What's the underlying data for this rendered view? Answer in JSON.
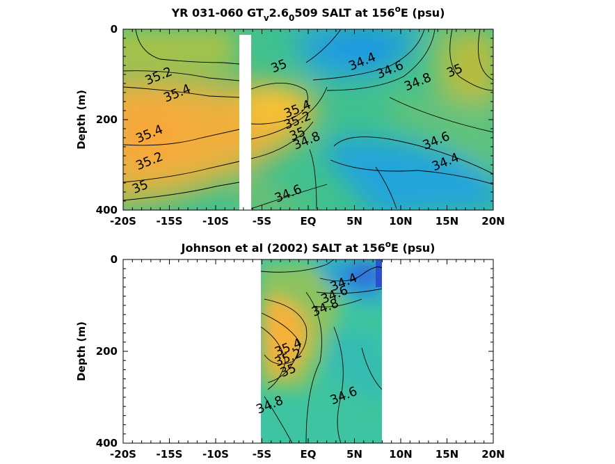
{
  "chart_data": [
    {
      "type": "heatmap",
      "title_parts": {
        "pre": "YR 031-060 GT",
        "sub1": "v",
        "mid": "2.6",
        "sub2": "0",
        "post": "509 SALT at 156",
        "sup": "o",
        "tail": "E (psu)"
      },
      "xlabel": "",
      "ylabel": "Depth (m)",
      "x_ticks": [
        "-20S",
        "-15S",
        "-10S",
        "-5S",
        "EQ",
        "5N",
        "10N",
        "15N",
        "20N"
      ],
      "y_ticks": [
        "0",
        "200",
        "400"
      ],
      "xlim": [
        -20,
        20
      ],
      "ylim": [
        0,
        400
      ],
      "y_reversed": true,
      "colormap": "parula",
      "contour_labels": [
        {
          "text": "35",
          "x": -3,
          "y": 90
        },
        {
          "text": "35.2",
          "x": -16,
          "y": 112
        },
        {
          "text": "35.4",
          "x": -14,
          "y": 150
        },
        {
          "text": "35.4",
          "x": -17,
          "y": 240
        },
        {
          "text": "35.2",
          "x": -17,
          "y": 300
        },
        {
          "text": "35",
          "x": -18,
          "y": 357
        },
        {
          "text": "35.4",
          "x": -1,
          "y": 185
        },
        {
          "text": "35.2",
          "x": -1,
          "y": 210
        },
        {
          "text": "35",
          "x": -1,
          "y": 240
        },
        {
          "text": "34.8",
          "x": 0,
          "y": 255
        },
        {
          "text": "34.6",
          "x": -2,
          "y": 372
        },
        {
          "text": "34.4",
          "x": 6,
          "y": 80
        },
        {
          "text": "34.6",
          "x": 9,
          "y": 98
        },
        {
          "text": "34.8",
          "x": 12,
          "y": 125
        },
        {
          "text": "35",
          "x": 16,
          "y": 100
        },
        {
          "text": "34.6",
          "x": 14,
          "y": 255
        },
        {
          "text": "34.4",
          "x": 15,
          "y": 302
        }
      ]
    },
    {
      "type": "heatmap",
      "title_parts": {
        "pre": "Johnson et al (2002) SALT at 156",
        "sup": "o",
        "tail": "E (psu)"
      },
      "xlabel": "",
      "ylabel": "Depth (m)",
      "x_ticks": [
        "-20S",
        "-15S",
        "-10S",
        "-5S",
        "EQ",
        "5N",
        "10N",
        "15N",
        "20N"
      ],
      "y_ticks": [
        "0",
        "200",
        "400"
      ],
      "xlim": [
        -20,
        20
      ],
      "ylim": [
        0,
        400
      ],
      "y_reversed": true,
      "data_coverage_x": [
        -5,
        8
      ],
      "colormap": "parula",
      "contour_labels": [
        {
          "text": "34.4",
          "x": 4,
          "y": 58
        },
        {
          "text": "34.6",
          "x": 3,
          "y": 85
        },
        {
          "text": "34.8",
          "x": 2,
          "y": 113
        },
        {
          "text": "35.4",
          "x": -2,
          "y": 200
        },
        {
          "text": "35.2",
          "x": -2,
          "y": 222
        },
        {
          "text": "35",
          "x": -2,
          "y": 250
        },
        {
          "text": "34.8",
          "x": -4,
          "y": 325
        },
        {
          "text": "34.6",
          "x": 4,
          "y": 305
        }
      ]
    }
  ]
}
